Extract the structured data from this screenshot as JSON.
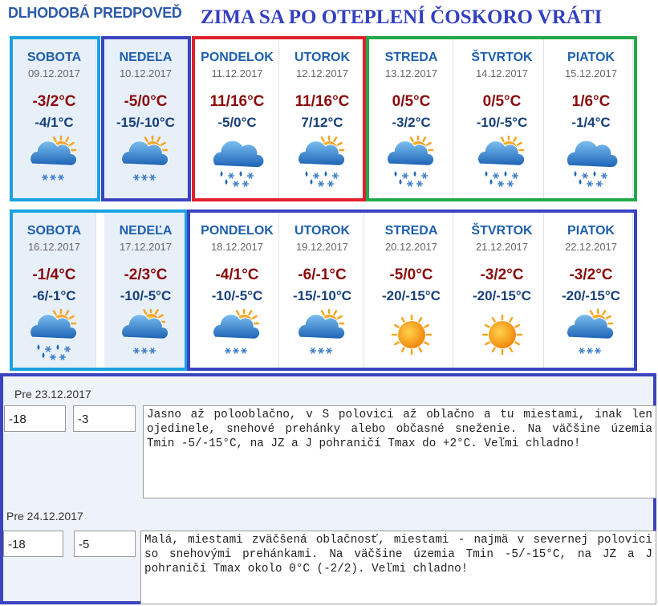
{
  "header": {
    "brand": "DLHODOBÁ PREDPOVEĎ",
    "title": "ZIMA SA PO OTEPLENÍ ČOSKORO VRÁTI"
  },
  "weeks": [
    {
      "days": [
        {
          "day": "SOBOTA",
          "date": "09.12.2017",
          "max": "-3/2°C",
          "min": "-4/1°C"
        },
        {
          "day": "NEDEĽA",
          "date": "10.12.2017",
          "max": "-5/0°C",
          "min": "-15/-10°C"
        },
        {
          "day": "PONDELOK",
          "date": "11.12.2017",
          "max": "11/16°C",
          "min": "-5/0°C"
        },
        {
          "day": "UTOROK",
          "date": "12.12.2017",
          "max": "11/16°C",
          "min": "7/12°C"
        },
        {
          "day": "STREDA",
          "date": "13.12.2017",
          "max": "0/5°C",
          "min": "-3/2°C"
        },
        {
          "day": "ŠTVRTOK",
          "date": "14.12.2017",
          "max": "0/5°C",
          "min": "-10/-5°C"
        },
        {
          "day": "PIATOK",
          "date": "15.12.2017",
          "max": "1/6°C",
          "min": "-1/4°C"
        }
      ]
    },
    {
      "days": [
        {
          "day": "SOBOTA",
          "date": "16.12.2017",
          "max": "-1/4°C",
          "min": "-6/-1°C"
        },
        {
          "day": "NEDEĽA",
          "date": "17.12.2017",
          "max": "-2/3°C",
          "min": "-10/-5°C"
        },
        {
          "day": "PONDELOK",
          "date": "18.12.2017",
          "max": "-4/1°C",
          "min": "-10/-5°C"
        },
        {
          "day": "UTOROK",
          "date": "19.12.2017",
          "max": "-6/-1°C",
          "min": "-15/-10°C"
        },
        {
          "day": "STREDA",
          "date": "20.12.2017",
          "max": "-5/0°C",
          "min": "-20/-15°C"
        },
        {
          "day": "ŠTVRTOK",
          "date": "21.12.2017",
          "max": "-3/2°C",
          "min": "-20/-15°C"
        },
        {
          "day": "PIATOK",
          "date": "22.12.2017",
          "max": "-3/2°C",
          "min": "-20/-15°C"
        }
      ]
    }
  ],
  "outlook": [
    {
      "label": "Pre 23.12.2017",
      "min": "-18",
      "max": "-3",
      "text": "Jasno až polooblačno, v S polovici až oblačno a tu miestami, inak len ojedinele, snehové prehánky alebo občasné sneženie. Na väčšine územia Tmin -5/-15°C, na JZ a J pohraničí Tmax do +2°C. Veľmi chladno!"
    },
    {
      "label": "Pre 24.12.2017",
      "min": "-18",
      "max": "-5",
      "text": "Malá, miestami zväčšená oblačnosť, miestami - najmä v severnej polovici so snehovými prehánkami. Na väčšine územia Tmin -5/-15°C, na JZ a J pohraničí Tmax okolo 0°C (-2/2). Veľmi chladno!"
    }
  ]
}
